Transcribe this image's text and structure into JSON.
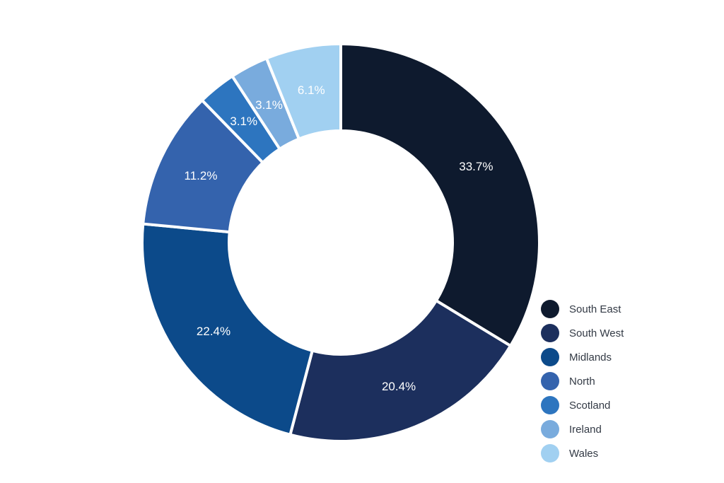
{
  "chart_data": {
    "type": "pie",
    "variant": "donut",
    "title": "",
    "categories": [
      "South East",
      "South West",
      "Midlands",
      "North",
      "Scotland",
      "Ireland",
      "Wales"
    ],
    "values": [
      33.7,
      20.4,
      22.4,
      11.2,
      3.1,
      3.1,
      6.1
    ],
    "labels": [
      "33.7%",
      "20.4%",
      "22.4%",
      "11.2%",
      "3.1%",
      "3.1%",
      "6.1%"
    ],
    "colors": [
      "#0e1a2e",
      "#1c2f5d",
      "#0c4a8a",
      "#3463ad",
      "#2d75bf",
      "#79abdd",
      "#a1d0f1"
    ],
    "legend_position": "bottom-right",
    "start": "top",
    "direction": "clockwise"
  }
}
